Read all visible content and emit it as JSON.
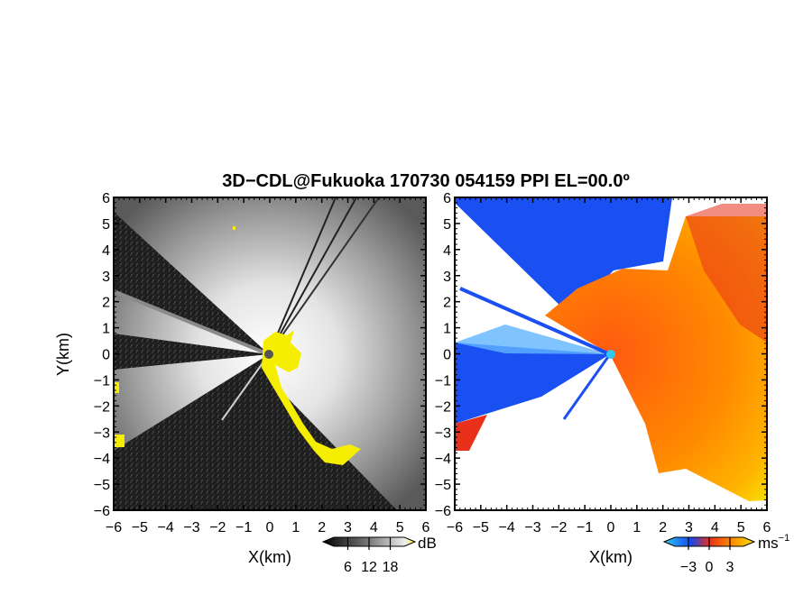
{
  "title": "3D−CDL@Fukuoka 170730 054159 PPI EL=00.0º",
  "chart_data": [
    {
      "type": "heatmap",
      "panel": "reflectivity",
      "xlabel": "X(km)",
      "ylabel": "Y(km)",
      "xlim": [
        -6,
        6
      ],
      "ylim": [
        -6,
        6
      ],
      "xticks": [
        "−6",
        "−5",
        "−4",
        "−3",
        "−2",
        "−1",
        "0",
        "1",
        "2",
        "3",
        "4",
        "5",
        "6"
      ],
      "yticks": [
        "6",
        "5",
        "4",
        "3",
        "2",
        "1",
        "0",
        "−1",
        "−2",
        "−3",
        "−4",
        "−5",
        "−6"
      ],
      "colorbar": {
        "unit": "dB",
        "ticks": [
          "6",
          "12",
          "18"
        ],
        "colors": [
          "#000000",
          "#f0f0f0",
          "#f5ee00"
        ]
      }
    },
    {
      "type": "heatmap",
      "panel": "doppler-velocity",
      "xlabel": "X(km)",
      "xlim": [
        -6,
        6
      ],
      "ylim": [
        -6,
        6
      ],
      "xticks": [
        "−6",
        "−5",
        "−4",
        "−3",
        "−2",
        "−1",
        "0",
        "1",
        "2",
        "3",
        "4",
        "5",
        "6"
      ],
      "yticks": [
        "6",
        "5",
        "4",
        "3",
        "2",
        "1",
        "0",
        "−1",
        "−2",
        "−3",
        "−4",
        "−5",
        "−6"
      ],
      "colorbar": {
        "unit": "ms",
        "unit_exp": "−1",
        "ticks": [
          "−3",
          "0",
          "3"
        ],
        "colors": [
          "#2ec8ef",
          "#1448f0",
          "#e8301a",
          "#ff8a00",
          "#f7e000"
        ]
      }
    }
  ]
}
